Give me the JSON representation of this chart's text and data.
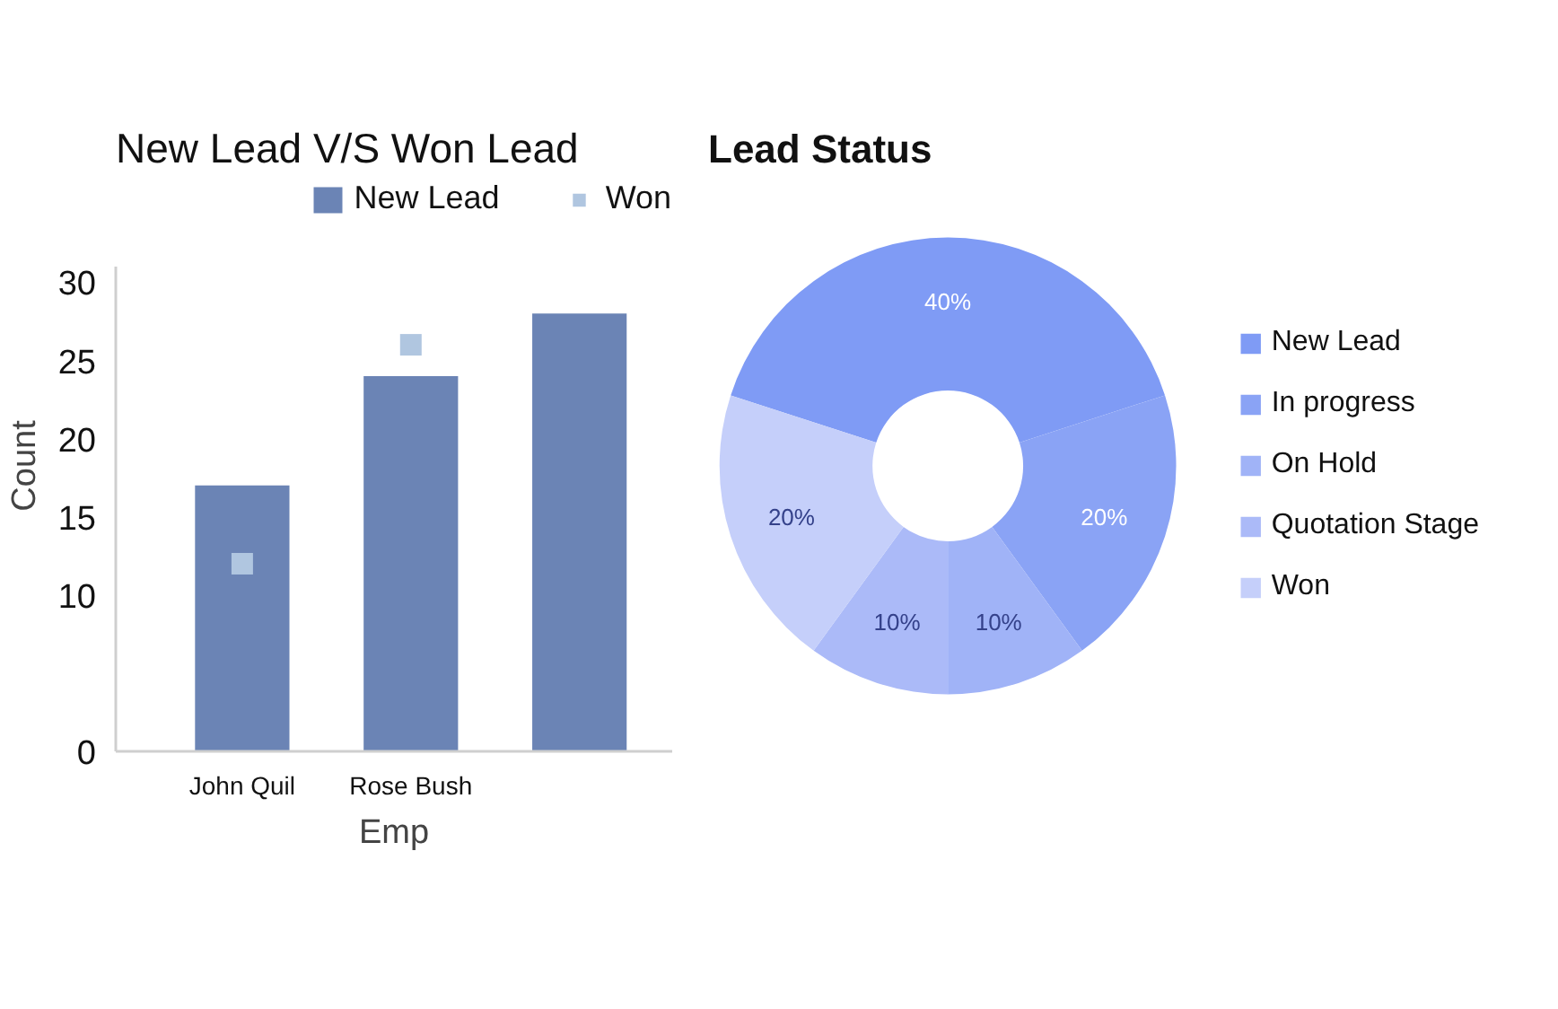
{
  "chart_data": [
    {
      "type": "bar",
      "title": "New Lead V/S Won Lead",
      "xlabel": "Emp",
      "ylabel": "Count",
      "categories": [
        "John Quil",
        "Rose Bush",
        null
      ],
      "series": [
        {
          "name": "New Lead",
          "color": "#6b84b5",
          "values": [
            17,
            24,
            28
          ]
        },
        {
          "name": "Won",
          "type": "scatter",
          "marker": "square",
          "color": "#b0c6e0",
          "values": [
            12,
            26,
            null
          ]
        }
      ],
      "ylim": [
        0,
        31
      ],
      "yticks": [
        0,
        10,
        15,
        20,
        25,
        30
      ],
      "grid": false,
      "legend": "top right"
    },
    {
      "type": "donut",
      "title": "Lead Status",
      "categories": [
        "New Lead",
        "In progress",
        "On Hold",
        "Quotation Stage",
        "Won"
      ],
      "values": [
        40,
        20,
        10,
        10,
        20
      ],
      "colors": [
        "#7f9bf5",
        "#8aa3f5",
        "#a0b3f7",
        "#abbaf8",
        "#c5cffa"
      ],
      "value_labels": [
        "40%",
        "20%",
        "10%",
        "10%",
        "20%"
      ],
      "legend": "right"
    }
  ]
}
